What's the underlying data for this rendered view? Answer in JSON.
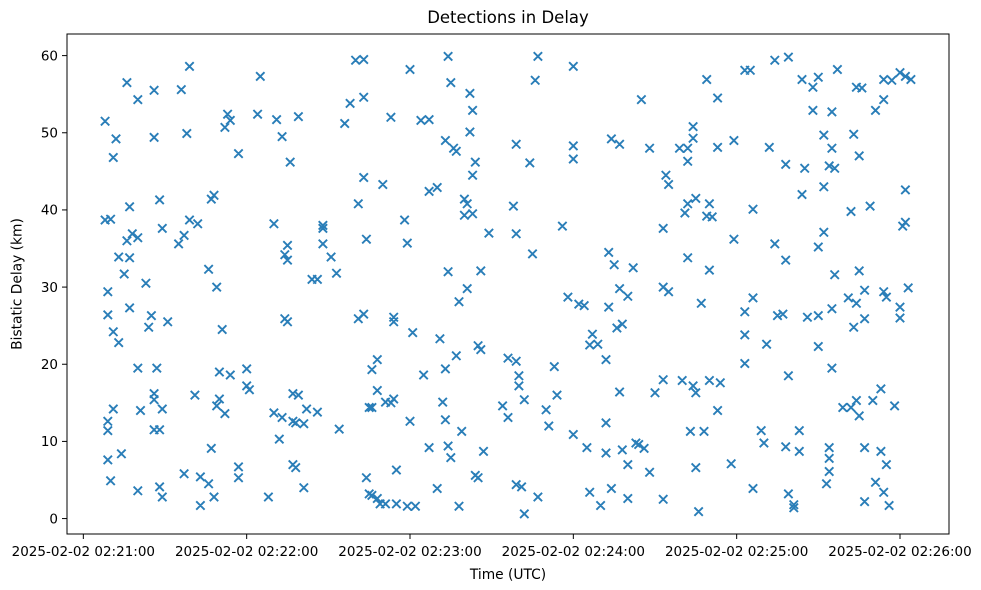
{
  "chart_data": {
    "type": "scatter",
    "title": "Detections in Delay",
    "xlabel": "Time (UTC)",
    "ylabel": "Bistatic Delay (km)",
    "grid": false,
    "legend": null,
    "marker": "x",
    "marker_color": "#1f77b4",
    "axis_color": "#000000",
    "x_origin": "2025-02-02 02:21:00",
    "x_unit": "seconds after x_origin",
    "xlim_seconds": [
      -6,
      318
    ],
    "ylim": [
      -2,
      62.8
    ],
    "y_ticks": [
      0,
      10,
      20,
      30,
      40,
      50,
      60
    ],
    "x_ticks": [
      {
        "seconds": 0,
        "label": "2025-02-02 02:21:00"
      },
      {
        "seconds": 60,
        "label": "2025-02-02 02:22:00"
      },
      {
        "seconds": 120,
        "label": "2025-02-02 02:23:00"
      },
      {
        "seconds": 180,
        "label": "2025-02-02 02:24:00"
      },
      {
        "seconds": 240,
        "label": "2025-02-02 02:25:00"
      },
      {
        "seconds": 300,
        "label": "2025-02-02 02:26:00"
      }
    ],
    "points": [
      [
        39,
        58.6
      ],
      [
        16,
        56.5
      ],
      [
        65,
        57.3
      ],
      [
        26,
        55.5
      ],
      [
        36,
        55.6
      ],
      [
        20,
        54.3
      ],
      [
        100,
        59.4
      ],
      [
        103,
        59.5
      ],
      [
        120,
        58.2
      ],
      [
        134,
        59.9
      ],
      [
        135,
        56.5
      ],
      [
        98,
        53.8
      ],
      [
        103,
        54.6
      ],
      [
        142,
        55.1
      ],
      [
        143,
        52.9
      ],
      [
        8,
        51.5
      ],
      [
        12,
        49.2
      ],
      [
        11,
        46.8
      ],
      [
        26,
        49.4
      ],
      [
        38,
        49.9
      ],
      [
        53,
        52.4
      ],
      [
        54,
        51.6
      ],
      [
        52,
        50.7
      ],
      [
        64,
        52.4
      ],
      [
        71,
        51.7
      ],
      [
        79,
        52.1
      ],
      [
        73,
        49.5
      ],
      [
        57,
        47.3
      ],
      [
        76,
        46.2
      ],
      [
        96,
        51.2
      ],
      [
        113,
        52.0
      ],
      [
        124,
        51.6
      ],
      [
        127,
        51.7
      ],
      [
        142,
        50.1
      ],
      [
        133,
        49.0
      ],
      [
        136,
        48.0
      ],
      [
        137,
        47.6
      ],
      [
        144,
        46.2
      ],
      [
        143,
        44.5
      ],
      [
        103,
        44.2
      ],
      [
        110,
        43.3
      ],
      [
        127,
        42.4
      ],
      [
        130,
        42.9
      ],
      [
        140,
        41.4
      ],
      [
        28,
        41.3
      ],
      [
        48,
        41.9
      ],
      [
        47,
        41.4
      ],
      [
        167,
        59.9
      ],
      [
        180,
        58.6
      ],
      [
        166,
        56.8
      ],
      [
        205,
        54.3
      ],
      [
        229,
        56.9
      ],
      [
        233,
        54.5
      ],
      [
        243,
        58.1
      ],
      [
        245,
        58.1
      ],
      [
        254,
        59.4
      ],
      [
        259,
        59.8
      ],
      [
        264,
        56.9
      ],
      [
        270,
        57.2
      ],
      [
        268,
        55.9
      ],
      [
        277,
        58.2
      ],
      [
        284,
        55.9
      ],
      [
        286,
        55.8
      ],
      [
        294,
        56.9
      ],
      [
        297,
        56.8
      ],
      [
        300,
        57.8
      ],
      [
        302,
        57.3
      ],
      [
        304,
        56.9
      ],
      [
        294,
        54.3
      ],
      [
        291,
        52.9
      ],
      [
        268,
        52.9
      ],
      [
        275,
        52.7
      ],
      [
        224,
        50.8
      ],
      [
        224,
        49.3
      ],
      [
        159,
        48.5
      ],
      [
        180,
        48.3
      ],
      [
        180,
        46.6
      ],
      [
        164,
        46.1
      ],
      [
        194,
        49.2
      ],
      [
        197,
        48.5
      ],
      [
        208,
        48.0
      ],
      [
        219,
        48.0
      ],
      [
        222,
        48.0
      ],
      [
        233,
        48.1
      ],
      [
        239,
        49.0
      ],
      [
        222,
        46.3
      ],
      [
        252,
        48.1
      ],
      [
        272,
        49.7
      ],
      [
        283,
        49.8
      ],
      [
        275,
        48.0
      ],
      [
        285,
        47.0
      ],
      [
        258,
        45.9
      ],
      [
        265,
        45.4
      ],
      [
        274,
        45.7
      ],
      [
        276,
        45.4
      ],
      [
        214,
        44.5
      ],
      [
        215,
        43.3
      ],
      [
        225,
        41.5
      ],
      [
        264,
        42.0
      ],
      [
        272,
        43.0
      ],
      [
        302,
        42.6
      ],
      [
        8,
        38.7
      ],
      [
        10,
        38.8
      ],
      [
        17,
        40.4
      ],
      [
        16,
        36.0
      ],
      [
        18,
        36.9
      ],
      [
        20,
        36.4
      ],
      [
        29,
        37.6
      ],
      [
        35,
        35.6
      ],
      [
        37,
        36.7
      ],
      [
        39,
        38.7
      ],
      [
        42,
        38.2
      ],
      [
        13,
        33.9
      ],
      [
        17,
        33.8
      ],
      [
        15,
        31.7
      ],
      [
        23,
        30.5
      ],
      [
        9,
        29.4
      ],
      [
        46,
        32.3
      ],
      [
        49,
        30.0
      ],
      [
        9,
        26.4
      ],
      [
        17,
        27.3
      ],
      [
        11,
        24.2
      ],
      [
        13,
        22.8
      ],
      [
        25,
        26.3
      ],
      [
        24,
        24.8
      ],
      [
        31,
        25.5
      ],
      [
        51,
        24.5
      ],
      [
        70,
        38.2
      ],
      [
        88,
        37.6
      ],
      [
        88,
        38.0
      ],
      [
        88,
        35.6
      ],
      [
        75,
        35.4
      ],
      [
        74,
        34.2
      ],
      [
        75,
        33.5
      ],
      [
        91,
        33.9
      ],
      [
        93,
        31.8
      ],
      [
        84,
        31.0
      ],
      [
        86,
        31.0
      ],
      [
        104,
        36.2
      ],
      [
        118,
        38.7
      ],
      [
        119,
        35.7
      ],
      [
        101,
        40.8
      ],
      [
        141,
        40.8
      ],
      [
        140,
        39.3
      ],
      [
        143,
        39.5
      ],
      [
        149,
        37.0
      ],
      [
        134,
        32.0
      ],
      [
        146,
        32.1
      ],
      [
        141,
        29.8
      ],
      [
        138,
        28.1
      ],
      [
        74,
        25.9
      ],
      [
        75,
        25.5
      ],
      [
        101,
        25.9
      ],
      [
        103,
        26.5
      ],
      [
        114,
        26.1
      ],
      [
        114,
        25.5
      ],
      [
        121,
        24.1
      ],
      [
        131,
        23.3
      ],
      [
        145,
        22.4
      ],
      [
        146,
        21.9
      ],
      [
        137,
        21.1
      ],
      [
        108,
        20.6
      ],
      [
        20,
        19.5
      ],
      [
        27,
        19.5
      ],
      [
        60,
        19.4
      ],
      [
        106,
        19.3
      ],
      [
        50,
        19.0
      ],
      [
        133,
        19.4
      ],
      [
        158,
        40.5
      ],
      [
        159,
        36.9
      ],
      [
        176,
        37.9
      ],
      [
        165,
        34.3
      ],
      [
        173,
        19.7
      ],
      [
        159,
        20.4
      ],
      [
        156,
        20.8
      ],
      [
        178,
        28.7
      ],
      [
        182,
        27.8
      ],
      [
        184,
        27.6
      ],
      [
        193,
        34.5
      ],
      [
        195,
        32.9
      ],
      [
        202,
        32.5
      ],
      [
        193,
        27.4
      ],
      [
        197,
        29.8
      ],
      [
        200,
        28.8
      ],
      [
        196,
        24.7
      ],
      [
        198,
        25.2
      ],
      [
        187,
        23.9
      ],
      [
        186,
        22.5
      ],
      [
        189,
        22.6
      ],
      [
        192,
        20.6
      ],
      [
        213,
        30.0
      ],
      [
        215,
        29.4
      ],
      [
        213,
        37.6
      ],
      [
        221,
        39.6
      ],
      [
        229,
        39.2
      ],
      [
        231,
        39.1
      ],
      [
        230,
        40.8
      ],
      [
        222,
        40.8
      ],
      [
        222,
        33.8
      ],
      [
        230,
        32.2
      ],
      [
        227,
        27.9
      ],
      [
        239,
        36.2
      ],
      [
        246,
        40.1
      ],
      [
        246,
        28.6
      ],
      [
        243,
        26.8
      ],
      [
        243,
        23.8
      ],
      [
        251,
        22.6
      ],
      [
        243,
        20.1
      ],
      [
        254,
        35.6
      ],
      [
        258,
        33.5
      ],
      [
        255,
        26.3
      ],
      [
        257,
        26.5
      ],
      [
        266,
        26.1
      ],
      [
        270,
        26.3
      ],
      [
        275,
        27.2
      ],
      [
        272,
        37.1
      ],
      [
        270,
        35.2
      ],
      [
        270,
        22.3
      ],
      [
        276,
        31.6
      ],
      [
        282,
        39.8
      ],
      [
        289,
        40.5
      ],
      [
        285,
        32.1
      ],
      [
        281,
        28.6
      ],
      [
        284,
        27.9
      ],
      [
        287,
        29.6
      ],
      [
        283,
        24.8
      ],
      [
        287,
        25.9
      ],
      [
        294,
        29.4
      ],
      [
        295,
        28.7
      ],
      [
        300,
        27.4
      ],
      [
        300,
        26.0
      ],
      [
        303,
        29.9
      ],
      [
        301,
        37.9
      ],
      [
        302,
        38.4
      ],
      [
        275,
        19.5
      ],
      [
        11,
        14.2
      ],
      [
        21,
        14.0
      ],
      [
        9,
        12.6
      ],
      [
        9,
        11.4
      ],
      [
        26,
        16.2
      ],
      [
        26,
        15.4
      ],
      [
        29,
        14.2
      ],
      [
        26,
        11.5
      ],
      [
        28,
        11.5
      ],
      [
        41,
        16.0
      ],
      [
        50,
        15.5
      ],
      [
        49,
        14.6
      ],
      [
        52,
        13.6
      ],
      [
        60,
        17.2
      ],
      [
        61,
        16.7
      ],
      [
        47,
        9.1
      ],
      [
        9,
        7.6
      ],
      [
        14,
        8.4
      ],
      [
        10,
        4.9
      ],
      [
        20,
        3.6
      ],
      [
        28,
        4.1
      ],
      [
        29,
        2.8
      ],
      [
        37,
        5.8
      ],
      [
        43,
        5.4
      ],
      [
        46,
        4.5
      ],
      [
        48,
        2.8
      ],
      [
        43,
        1.7
      ],
      [
        57,
        6.7
      ],
      [
        57,
        5.3
      ],
      [
        70,
        13.7
      ],
      [
        73,
        13.1
      ],
      [
        77,
        12.6
      ],
      [
        78,
        12.4
      ],
      [
        77,
        16.2
      ],
      [
        79,
        16.0
      ],
      [
        82,
        14.2
      ],
      [
        86,
        13.8
      ],
      [
        81,
        12.3
      ],
      [
        72,
        10.3
      ],
      [
        77,
        7.0
      ],
      [
        78,
        6.6
      ],
      [
        81,
        4.0
      ],
      [
        68,
        2.8
      ],
      [
        94,
        11.6
      ],
      [
        108,
        16.6
      ],
      [
        105,
        14.4
      ],
      [
        106,
        14.4
      ],
      [
        111,
        15.1
      ],
      [
        114,
        15.5
      ],
      [
        113,
        15.0
      ],
      [
        120,
        12.6
      ],
      [
        127,
        9.2
      ],
      [
        132,
        15.1
      ],
      [
        133,
        12.8
      ],
      [
        134,
        9.4
      ],
      [
        135,
        7.9
      ],
      [
        139,
        11.3
      ],
      [
        147,
        8.7
      ],
      [
        115,
        6.3
      ],
      [
        104,
        5.3
      ],
      [
        144,
        5.6
      ],
      [
        145,
        5.3
      ],
      [
        105,
        3.2
      ],
      [
        106,
        3.0
      ],
      [
        108,
        2.6
      ],
      [
        109,
        1.9
      ],
      [
        111,
        1.9
      ],
      [
        115,
        1.9
      ],
      [
        119,
        1.6
      ],
      [
        122,
        1.6
      ],
      [
        130,
        3.9
      ],
      [
        138,
        1.6
      ],
      [
        154,
        14.6
      ],
      [
        54,
        18.6
      ],
      [
        125,
        18.6
      ],
      [
        160,
        18.5
      ],
      [
        259,
        18.5
      ],
      [
        160,
        17.2
      ],
      [
        162,
        15.4
      ],
      [
        156,
        13.1
      ],
      [
        170,
        14.1
      ],
      [
        174,
        16.0
      ],
      [
        171,
        12.0
      ],
      [
        197,
        16.4
      ],
      [
        210,
        16.3
      ],
      [
        213,
        18.0
      ],
      [
        220,
        17.9
      ],
      [
        224,
        17.2
      ],
      [
        225,
        16.3
      ],
      [
        230,
        17.9
      ],
      [
        234,
        17.6
      ],
      [
        233,
        14.0
      ],
      [
        180,
        10.9
      ],
      [
        185,
        9.2
      ],
      [
        192,
        12.4
      ],
      [
        192,
        8.5
      ],
      [
        198,
        8.9
      ],
      [
        203,
        9.8
      ],
      [
        204,
        9.6
      ],
      [
        206,
        9.1
      ],
      [
        200,
        7.0
      ],
      [
        208,
        6.0
      ],
      [
        223,
        11.3
      ],
      [
        228,
        11.3
      ],
      [
        225,
        6.6
      ],
      [
        238,
        7.1
      ],
      [
        249,
        11.4
      ],
      [
        250,
        9.8
      ],
      [
        258,
        9.3
      ],
      [
        263,
        11.4
      ],
      [
        263,
        8.7
      ],
      [
        246,
        3.9
      ],
      [
        259,
        3.2
      ],
      [
        261,
        1.8
      ],
      [
        261,
        1.4
      ],
      [
        274,
        9.2
      ],
      [
        274,
        7.8
      ],
      [
        274,
        6.1
      ],
      [
        273,
        4.5
      ],
      [
        287,
        9.2
      ],
      [
        293,
        8.7
      ],
      [
        295,
        7.0
      ],
      [
        291,
        4.7
      ],
      [
        294,
        3.4
      ],
      [
        287,
        2.2
      ],
      [
        296,
        1.7
      ],
      [
        279,
        14.4
      ],
      [
        282,
        14.4
      ],
      [
        284,
        15.3
      ],
      [
        285,
        13.3
      ],
      [
        290,
        15.3
      ],
      [
        293,
        16.8
      ],
      [
        298,
        14.6
      ],
      [
        159,
        4.4
      ],
      [
        161,
        4.1
      ],
      [
        167,
        2.8
      ],
      [
        162,
        0.6
      ],
      [
        186,
        3.4
      ],
      [
        190,
        1.7
      ],
      [
        194,
        3.9
      ],
      [
        200,
        2.6
      ],
      [
        213,
        2.5
      ],
      [
        226,
        0.9
      ]
    ]
  }
}
